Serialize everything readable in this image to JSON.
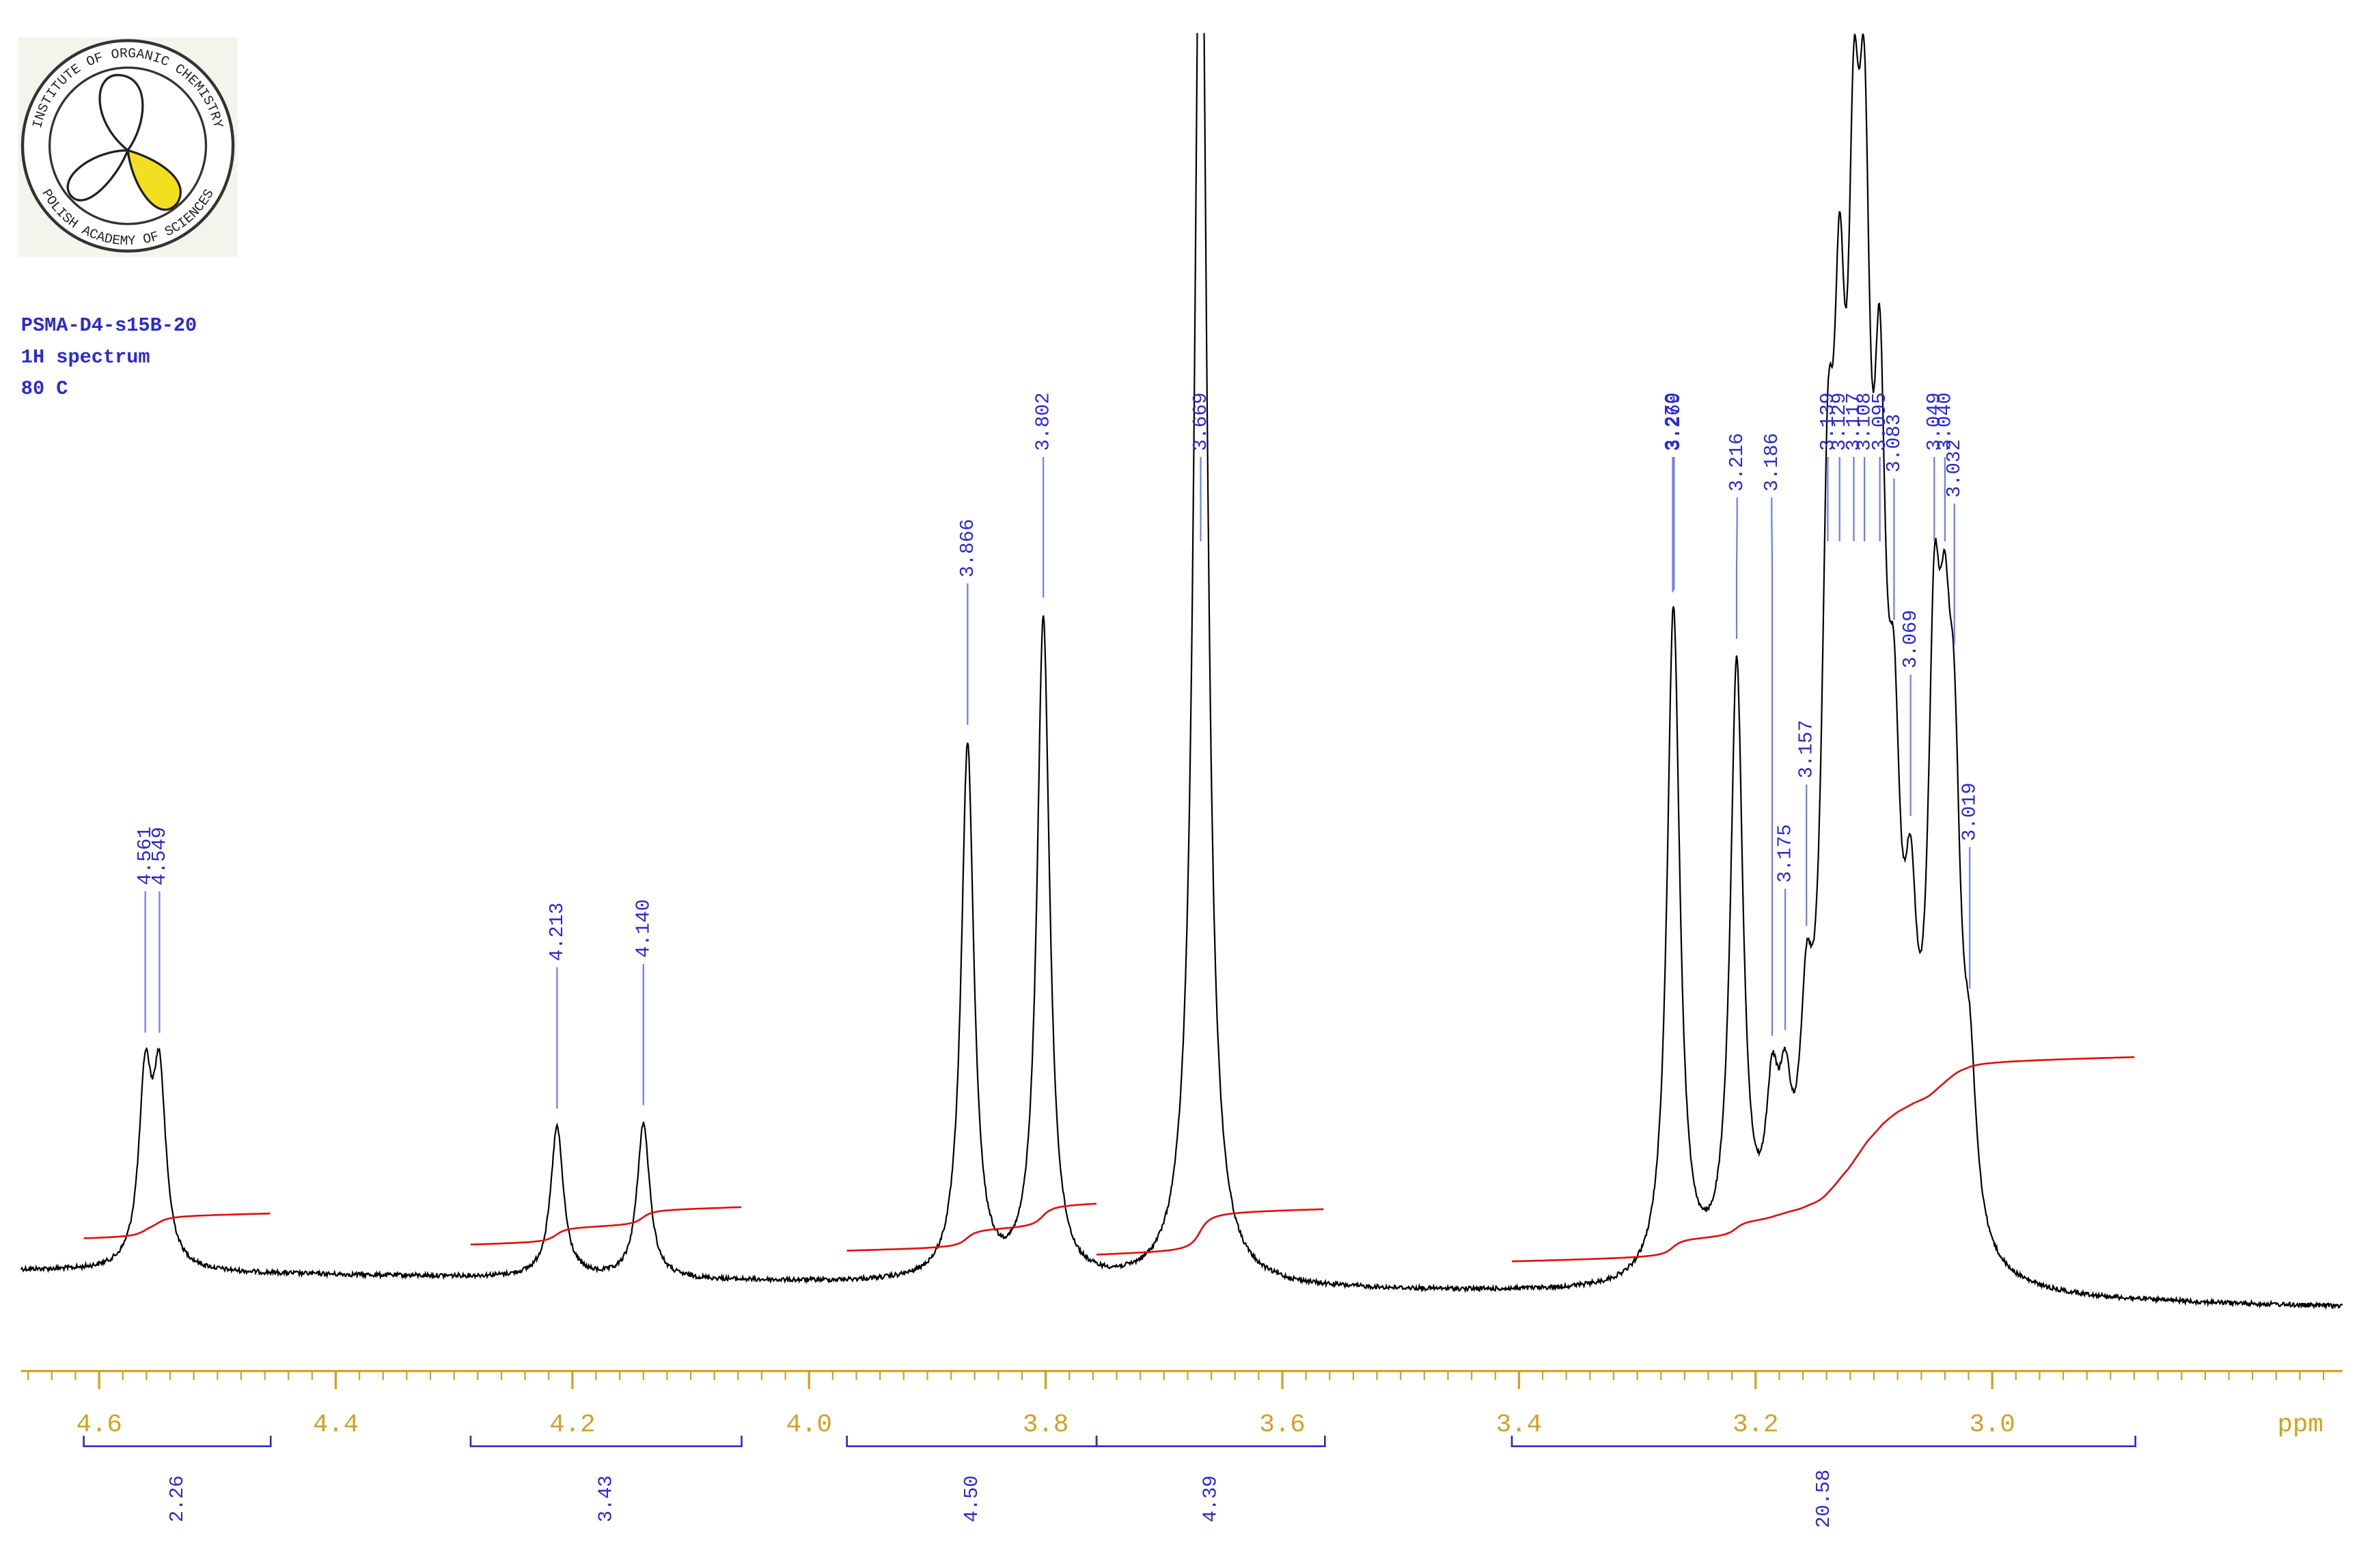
{
  "logo": {
    "top_text": "INSTITUTE OF ORGANIC CHEMISTRY",
    "bottom_text": "POLISH ACADEMY OF SCIENCES"
  },
  "sample": {
    "name": "PSMA-D4-s15B-20",
    "experiment": "1H spectrum",
    "temperature": "80 C"
  },
  "chart_data": {
    "type": "nmr",
    "x_label": "ppm",
    "xlim": [
      4.666,
      2.704
    ],
    "xticks": [
      4.6,
      4.4,
      4.2,
      {
        "value": 4,
        "label": "4.0"
      },
      3.8,
      3.6,
      3.4,
      3.2,
      {
        "value": 3,
        "label": "3.0"
      }
    ],
    "xminor_step": 0.02,
    "color": "#000000",
    "integral_color": "#e01010",
    "peaks": {
      "ppm": [
        4.561,
        4.549,
        4.213,
        4.14,
        3.866,
        3.802,
        3.669,
        3.269,
        3.27,
        3.216,
        3.186,
        3.175,
        3.157,
        3.139,
        3.129,
        3.117,
        3.108,
        3.095,
        3.083,
        3.069,
        3.049,
        3.04,
        3.032,
        3.019
      ],
      "value_labels": [
        "4.561",
        "4.549",
        "4.213",
        "4.140",
        "3.866",
        "3.802",
        "3.669",
        "3.269",
        "3.270",
        "3.216",
        "3.186",
        "3.175",
        "3.157",
        "3.139",
        "3.129",
        "3.117",
        "3.108",
        "3.095",
        "3.083",
        "3.069",
        "3.049",
        "3.040",
        "3.032",
        "3.019"
      ],
      "intensities": [
        120,
        120,
        100,
        103,
        355,
        440,
        1000,
        250,
        200,
        400,
        90,
        80,
        120,
        380,
        420,
        480,
        500,
        420,
        230,
        160,
        330,
        250,
        240,
        95
      ]
    },
    "integrals": {
      "ranges": [
        [
          4.613,
          4.455
        ],
        [
          4.286,
          4.057
        ],
        [
          3.968,
          3.757
        ],
        [
          3.757,
          3.564
        ],
        [
          3.406,
          2.879
        ]
      ],
      "values": [
        2.26,
        3.43,
        4.5,
        4.39,
        20.58
      ],
      "value_labels": [
        "2.26",
        "3.43",
        "4.50",
        "4.39",
        "20.58"
      ]
    }
  }
}
